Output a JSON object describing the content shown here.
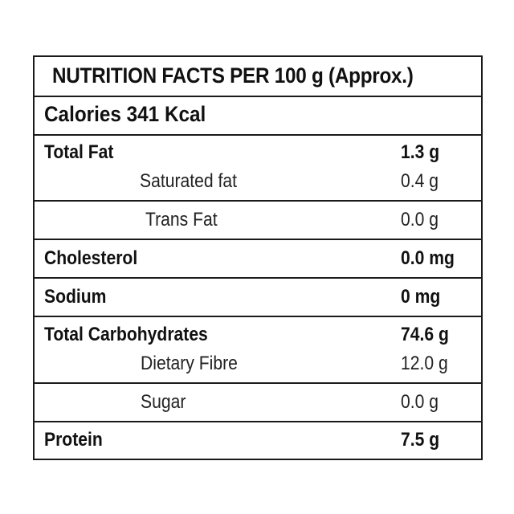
{
  "header": {
    "title": "NUTRITION FACTS PER 100 g (Approx.)"
  },
  "calories": {
    "text": "Calories 341 Kcal"
  },
  "nutrients": {
    "total_fat": {
      "label": "Total Fat",
      "value": "1.3 g"
    },
    "saturated_fat": {
      "label": "Saturated fat",
      "value": "0.4 g"
    },
    "trans_fat": {
      "label": "Trans Fat",
      "value": "0.0 g"
    },
    "cholesterol": {
      "label": "Cholesterol",
      "value": "0.0 mg"
    },
    "sodium": {
      "label": "Sodium",
      "value": "0 mg"
    },
    "total_carbohydrates": {
      "label": "Total Carbohydrates",
      "value": "74.6 g"
    },
    "dietary_fibre": {
      "label": "Dietary Fibre",
      "value": "12.0 g"
    },
    "sugar": {
      "label": "Sugar",
      "value": "0.0 g"
    },
    "protein": {
      "label": "Protein",
      "value": "7.5 g"
    }
  }
}
